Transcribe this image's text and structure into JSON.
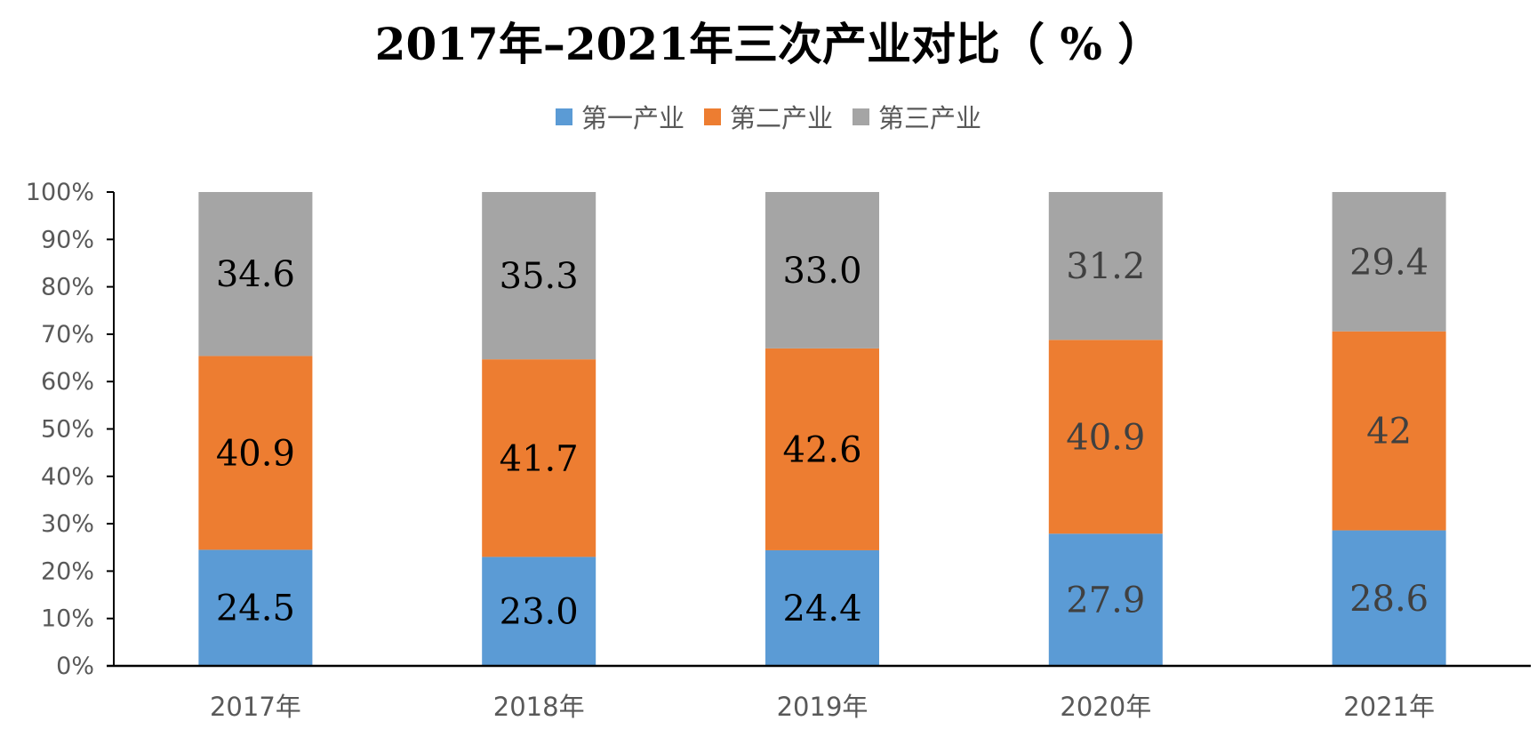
{
  "chart_data": {
    "type": "bar",
    "stacked": true,
    "normalized": true,
    "title": "2017年–2021年三次产业对比（ % ）",
    "categories": [
      "2017年",
      "2018年",
      "2019年",
      "2020年",
      "2021年"
    ],
    "series": [
      {
        "name": "第一产业",
        "values": [
          24.5,
          23.0,
          24.4,
          27.9,
          28.6
        ],
        "labels": [
          "24.5",
          "23.0",
          "24.4",
          "27.9",
          "28.6"
        ],
        "color": "#5B9BD5"
      },
      {
        "name": "第二产业",
        "values": [
          40.9,
          41.7,
          42.6,
          40.9,
          42
        ],
        "labels": [
          "40.9",
          "41.7",
          "42.6",
          "40.9",
          "42"
        ],
        "color": "#ED7D31"
      },
      {
        "name": "第三产业",
        "values": [
          34.6,
          35.3,
          33.0,
          31.2,
          29.4
        ],
        "labels": [
          "34.6",
          "35.3",
          "33.0",
          "31.2",
          "29.4"
        ],
        "color": "#A5A5A5"
      }
    ],
    "data_label_colors": [
      "#000000",
      "#000000",
      "#000000",
      "#404040",
      "#404040"
    ],
    "ylim": [
      0,
      100
    ],
    "yticks": [
      "0%",
      "10%",
      "20%",
      "30%",
      "40%",
      "50%",
      "60%",
      "70%",
      "80%",
      "90%",
      "100%"
    ],
    "grid": false,
    "legend_position": "top"
  }
}
